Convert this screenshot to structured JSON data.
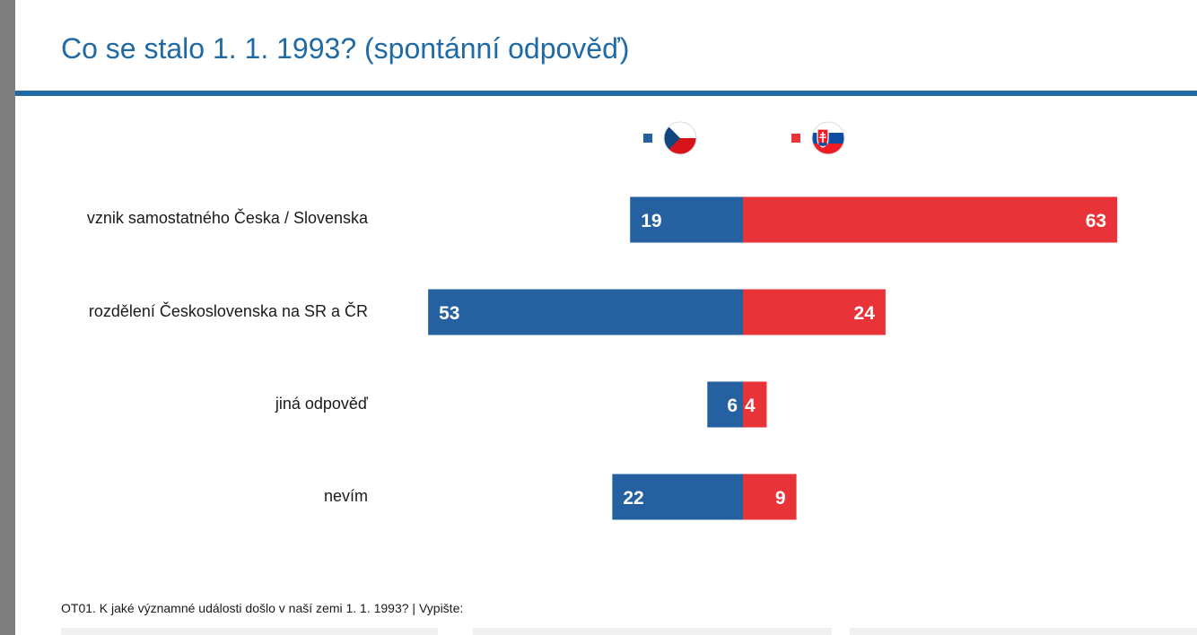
{
  "title": "Co se stalo 1. 1. 1993? (spontánní odpověď)",
  "footnote": "OT01. K jaké významné události došlo v naší zemi 1. 1. 1993? | Vypište:",
  "legend": [
    {
      "flag": "czech-flag-icon",
      "color": "#2561a1"
    },
    {
      "flag": "slovak-flag-icon",
      "color": "#e83338"
    }
  ],
  "chart_data": {
    "type": "bar",
    "orientation": "horizontal",
    "layout": "diverging",
    "categories": [
      "vznik samostatného Česka / Slovenska",
      "rozdělení Československa na SR a ČR",
      "jiná odpověď",
      "nevím"
    ],
    "series": [
      {
        "color": "#2561a1",
        "direction": "left",
        "values": [
          19,
          53,
          6,
          22
        ]
      },
      {
        "color": "#e83338",
        "direction": "right",
        "values": [
          63,
          24,
          4,
          9
        ]
      }
    ],
    "data_labels": true,
    "grid": false,
    "legend_position": "top"
  }
}
